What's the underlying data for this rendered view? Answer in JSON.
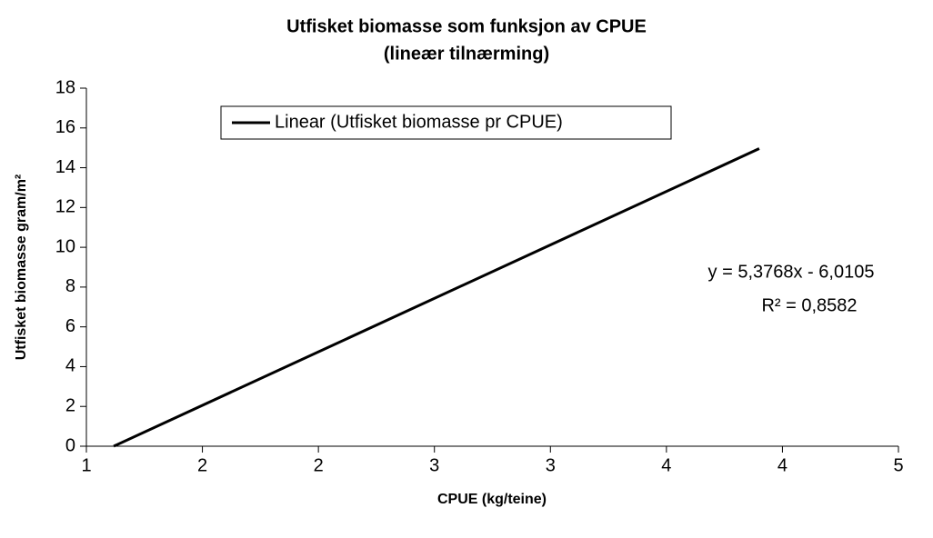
{
  "chart_data": {
    "type": "line",
    "title": "Utfisket biomasse som funksjon av CPUE",
    "subtitle": "(lineær tilnærming)",
    "x_label": "CPUE (kg/teine)",
    "y_label": "Utfisket biomasse gram/m²",
    "x": [
      1.1179,
      3.9
    ],
    "series": [
      {
        "name": "Linear (Utfisket biomasse pr CPUE)",
        "color": "#000000",
        "values": [
          0,
          14.96
        ]
      }
    ],
    "xlim": [
      1,
      4.5
    ],
    "xticks": [
      1,
      {
        "value": 1.5,
        "label": "2"
      },
      2,
      {
        "value": 2.5,
        "label": "3"
      },
      3,
      {
        "value": 3.5,
        "label": "4"
      },
      4,
      {
        "value": 4.5,
        "label": "5"
      }
    ],
    "ylim": [
      0,
      18
    ],
    "yticks": [
      0,
      2,
      4,
      6,
      8,
      10,
      12,
      14,
      16,
      18
    ],
    "grid": false,
    "legend": "top",
    "annotations": [
      "y = 5,3768x - 6,0105",
      "R² = 0,8582"
    ]
  }
}
